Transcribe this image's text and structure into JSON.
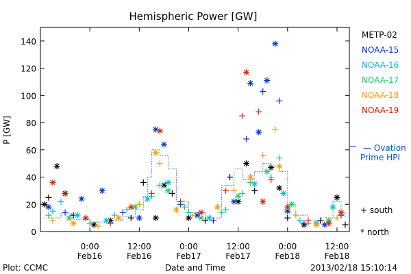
{
  "chart_data": {
    "type": "scatter",
    "title": "Hemispheric Power [GW]",
    "ylabel": "P [GW]",
    "xlabel": "Date and Time",
    "ylim": [
      0,
      150
    ],
    "yticks": [
      0,
      20,
      40,
      60,
      80,
      100,
      120,
      140
    ],
    "xlim_hours": [
      -11,
      62
    ],
    "xticks": [
      {
        "hour": 0,
        "time": "0:00",
        "date": "Feb16"
      },
      {
        "hour": 12,
        "time": "12:00",
        "date": "Feb16"
      },
      {
        "hour": 24,
        "time": "0:00",
        "date": "Feb17"
      },
      {
        "hour": 36,
        "time": "12:00",
        "date": "Feb17"
      },
      {
        "hour": 48,
        "time": "0:00",
        "date": "Feb18"
      },
      {
        "hour": 60,
        "time": "12:00",
        "date": "Feb18"
      }
    ],
    "legend_placement": "right",
    "marker_legend": {
      "plus": "+ south",
      "star": "* north"
    },
    "series": [
      {
        "name": "METP-02",
        "color": "#000000",
        "points": [
          [
            -11,
            20,
            "star"
          ],
          [
            -10,
            25,
            "plus"
          ],
          [
            -8,
            48,
            "star"
          ],
          [
            -6,
            28,
            "star"
          ],
          [
            -4,
            12,
            "plus"
          ],
          [
            1,
            5,
            "star"
          ],
          [
            5,
            8,
            "star"
          ],
          [
            10,
            10,
            "plus"
          ],
          [
            13,
            36,
            "plus"
          ],
          [
            16,
            10,
            "star"
          ],
          [
            18,
            34,
            "star"
          ],
          [
            20,
            28,
            "plus"
          ],
          [
            24,
            10,
            "star"
          ],
          [
            28,
            8,
            "plus"
          ],
          [
            34,
            40,
            "plus"
          ],
          [
            36,
            22,
            "star"
          ],
          [
            38,
            50,
            "star"
          ],
          [
            40,
            30,
            "plus"
          ],
          [
            44,
            47,
            "star"
          ],
          [
            46,
            32,
            "star"
          ],
          [
            48,
            10,
            "plus"
          ],
          [
            52,
            5,
            "star"
          ],
          [
            56,
            8,
            "plus"
          ],
          [
            60,
            25,
            "star"
          ],
          [
            62,
            5,
            "plus"
          ]
        ]
      },
      {
        "name": "NOAA-15",
        "color": "#0033cc",
        "points": [
          [
            -10,
            18,
            "star"
          ],
          [
            -6,
            14,
            "plus"
          ],
          [
            -2,
            24,
            "star"
          ],
          [
            3,
            30,
            "star"
          ],
          [
            8,
            14,
            "plus"
          ],
          [
            12,
            10,
            "star"
          ],
          [
            16,
            75,
            "star"
          ],
          [
            18,
            64,
            "star"
          ],
          [
            22,
            20,
            "plus"
          ],
          [
            26,
            12,
            "star"
          ],
          [
            30,
            8,
            "plus"
          ],
          [
            35,
            22,
            "star"
          ],
          [
            38,
            68,
            "plus"
          ],
          [
            39,
            109,
            "star"
          ],
          [
            41,
            73,
            "star"
          ],
          [
            42,
            103,
            "plus"
          ],
          [
            43,
            111,
            "star"
          ],
          [
            45,
            138,
            "star"
          ],
          [
            46,
            96,
            "plus"
          ],
          [
            48,
            15,
            "star"
          ],
          [
            52,
            6,
            "plus"
          ],
          [
            57,
            5,
            "star"
          ],
          [
            61,
            12,
            "plus"
          ]
        ]
      },
      {
        "name": "NOAA-16",
        "color": "#00bbdd",
        "points": [
          [
            -9,
            15,
            "plus"
          ],
          [
            -7,
            22,
            "plus"
          ],
          [
            -3,
            12,
            "star"
          ],
          [
            4,
            8,
            "star"
          ],
          [
            9,
            16,
            "plus"
          ],
          [
            14,
            24,
            "star"
          ],
          [
            17,
            34,
            "plus"
          ],
          [
            19,
            36,
            "star"
          ],
          [
            24,
            14,
            "plus"
          ],
          [
            29,
            10,
            "star"
          ],
          [
            33,
            16,
            "plus"
          ],
          [
            37,
            28,
            "plus"
          ],
          [
            40,
            35,
            "star"
          ],
          [
            44,
            40,
            "plus"
          ],
          [
            47,
            28,
            "star"
          ],
          [
            51,
            8,
            "plus"
          ],
          [
            55,
            6,
            "star"
          ],
          [
            59,
            18,
            "star"
          ]
        ]
      },
      {
        "name": "NOAA-17",
        "color": "#22cc66",
        "points": [
          [
            -10,
            12,
            "plus"
          ],
          [
            -5,
            10,
            "star"
          ],
          [
            0,
            6,
            "plus"
          ],
          [
            6,
            12,
            "plus"
          ],
          [
            11,
            18,
            "star"
          ],
          [
            15,
            26,
            "plus"
          ],
          [
            19,
            30,
            "star"
          ],
          [
            23,
            18,
            "plus"
          ],
          [
            27,
            10,
            "star"
          ],
          [
            32,
            14,
            "plus"
          ],
          [
            36,
            26,
            "star"
          ],
          [
            39,
            36,
            "plus"
          ],
          [
            43,
            44,
            "star"
          ],
          [
            46,
            54,
            "plus"
          ],
          [
            49,
            20,
            "star"
          ],
          [
            53,
            6,
            "plus"
          ],
          [
            58,
            8,
            "star"
          ]
        ]
      },
      {
        "name": "NOAA-18",
        "color": "#ff9900",
        "points": [
          [
            -9,
            8,
            "plus"
          ],
          [
            -4,
            6,
            "star"
          ],
          [
            2,
            4,
            "plus"
          ],
          [
            7,
            10,
            "star"
          ],
          [
            12,
            20,
            "plus"
          ],
          [
            16,
            58,
            "star"
          ],
          [
            17,
            50,
            "plus"
          ],
          [
            21,
            16,
            "star"
          ],
          [
            25,
            12,
            "plus"
          ],
          [
            31,
            18,
            "star"
          ],
          [
            35,
            30,
            "plus"
          ],
          [
            39,
            40,
            "star"
          ],
          [
            42,
            56,
            "plus"
          ],
          [
            45,
            75,
            "plus"
          ],
          [
            46,
            48,
            "star"
          ],
          [
            50,
            12,
            "plus"
          ],
          [
            55,
            5,
            "star"
          ],
          [
            60,
            10,
            "plus"
          ]
        ]
      },
      {
        "name": "NOAA-19",
        "color": "#dd2200",
        "points": [
          [
            -9,
            36,
            "star"
          ],
          [
            -6,
            28,
            "plus"
          ],
          [
            -1,
            10,
            "star"
          ],
          [
            5,
            6,
            "plus"
          ],
          [
            10,
            18,
            "star"
          ],
          [
            15,
            28,
            "plus"
          ],
          [
            17,
            74,
            "star"
          ],
          [
            22,
            22,
            "plus"
          ],
          [
            27,
            14,
            "star"
          ],
          [
            33,
            30,
            "plus"
          ],
          [
            37,
            85,
            "plus"
          ],
          [
            38,
            117,
            "star"
          ],
          [
            41,
            88,
            "plus"
          ],
          [
            42,
            22,
            "star"
          ],
          [
            44,
            38,
            "plus"
          ],
          [
            48,
            18,
            "star"
          ],
          [
            53,
            8,
            "plus"
          ],
          [
            58,
            6,
            "star"
          ],
          [
            61,
            14,
            "star"
          ]
        ]
      }
    ],
    "ovation_series": {
      "name": "— Ovation Prime HPI",
      "color": "#0055bb",
      "steps": [
        [
          -11,
          10
        ],
        [
          -7,
          13
        ],
        [
          -4,
          9
        ],
        [
          0,
          7
        ],
        [
          4,
          8
        ],
        [
          8,
          11
        ],
        [
          11,
          16
        ],
        [
          13,
          26
        ],
        [
          14,
          40
        ],
        [
          15,
          60
        ],
        [
          17,
          56
        ],
        [
          19,
          46
        ],
        [
          21,
          22
        ],
        [
          24,
          14
        ],
        [
          28,
          10
        ],
        [
          32,
          34
        ],
        [
          35,
          46
        ],
        [
          37,
          38
        ],
        [
          40,
          44
        ],
        [
          42,
          50
        ],
        [
          44,
          48
        ],
        [
          46,
          44
        ],
        [
          48,
          20
        ],
        [
          50,
          12
        ],
        [
          53,
          8
        ],
        [
          56,
          10
        ],
        [
          59,
          22
        ],
        [
          61,
          14
        ],
        [
          62,
          10
        ]
      ]
    }
  },
  "legend_names": [
    "METP-02",
    "NOAA-15",
    "NOAA-16",
    "NOAA-17",
    "NOAA-18",
    "NOAA-19"
  ],
  "ovation_label_line1": "— Ovation",
  "ovation_label_line2": "Prime HPI",
  "footer": {
    "plot_label": "Plot: CCMC",
    "timestamp": "2013/02/18 15:10:14"
  }
}
